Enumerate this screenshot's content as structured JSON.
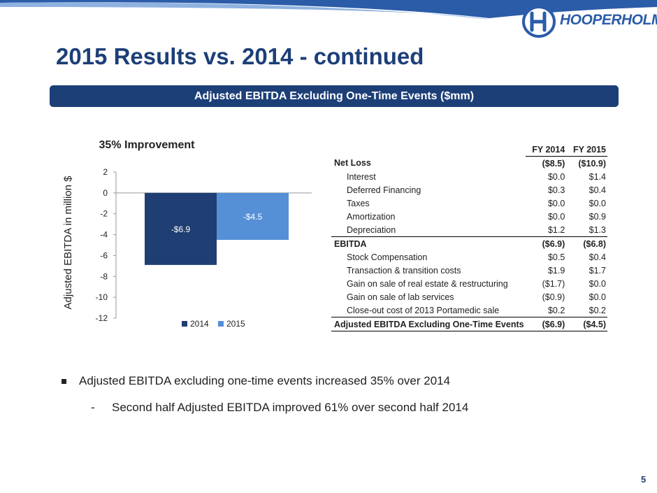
{
  "header": {
    "company_logo_text": "HOOPERHOLMES",
    "title": "2015 Results vs.  2014 - continued"
  },
  "banner": {
    "label": "Adjusted EBITDA Excluding One-Time Events ($mm)"
  },
  "colors": {
    "navy": "#1d3f78",
    "bar_2014": "#1f3e73",
    "bar_2015": "#5590d6",
    "swoosh": "#2b5ca8"
  },
  "chart_data": {
    "type": "bar",
    "title": "35% Improvement",
    "xlabel": "",
    "ylabel": "Adjusted EBITDA in million $",
    "ylim": [
      -12,
      2
    ],
    "yticks": [
      2,
      0,
      -2,
      -4,
      -6,
      -8,
      -10,
      -12
    ],
    "grid": false,
    "legend_position": "bottom",
    "categories": [
      ""
    ],
    "series": [
      {
        "name": "2014",
        "values": [
          -6.9
        ],
        "data_label": "-$6.9",
        "color": "#1f3e73"
      },
      {
        "name": "2015",
        "values": [
          -4.5
        ],
        "data_label": "-$4.5",
        "color": "#5590d6"
      }
    ]
  },
  "table": {
    "columns": [
      "FY 2014",
      "FY 2015"
    ],
    "rows": [
      {
        "label": "Net Loss",
        "fy2014": "($8.5)",
        "fy2015": "($10.9)",
        "style": "bold"
      },
      {
        "label": "Interest",
        "fy2014": "$0.0",
        "fy2015": "$1.4",
        "style": "indent"
      },
      {
        "label": "Deferred Financing",
        "fy2014": "$0.3",
        "fy2015": "$0.4",
        "style": "indent"
      },
      {
        "label": "Taxes",
        "fy2014": "$0.0",
        "fy2015": "$0.0",
        "style": "indent"
      },
      {
        "label": "Amortization",
        "fy2014": "$0.0",
        "fy2015": "$0.9",
        "style": "indent"
      },
      {
        "label": "Depreciation",
        "fy2014": "$1.2",
        "fy2015": "$1.3",
        "style": "indent"
      },
      {
        "label": "EBITDA",
        "fy2014": "($6.9)",
        "fy2015": "($6.8)",
        "style": "bold"
      },
      {
        "label": "Stock Compensation",
        "fy2014": "$0.5",
        "fy2015": "$0.4",
        "style": "indent"
      },
      {
        "label": "Transaction & transition costs",
        "fy2014": "$1.9",
        "fy2015": "$1.7",
        "style": "indent"
      },
      {
        "label": "Gain on sale of real estate & restructuring",
        "fy2014": "($1.7)",
        "fy2015": "$0.0",
        "style": "indent"
      },
      {
        "label": "Gain on sale of lab services",
        "fy2014": "($0.9)",
        "fy2015": "$0.0",
        "style": "indent"
      },
      {
        "label": "Close-out cost of 2013 Portamedic sale",
        "fy2014": "$0.2",
        "fy2015": "$0.2",
        "style": "indent"
      },
      {
        "label": "Adjusted EBITDA Excluding One-Time Events",
        "fy2014": "($6.9)",
        "fy2015": "($4.5)",
        "style": "total"
      }
    ]
  },
  "bullets": {
    "main": "Adjusted EBITDA excluding one-time events increased 35% over 2014",
    "sub_dash": "-",
    "sub": "Second half Adjusted EBITDA improved 61% over second half 2014"
  },
  "footer": {
    "page_number": "5"
  }
}
